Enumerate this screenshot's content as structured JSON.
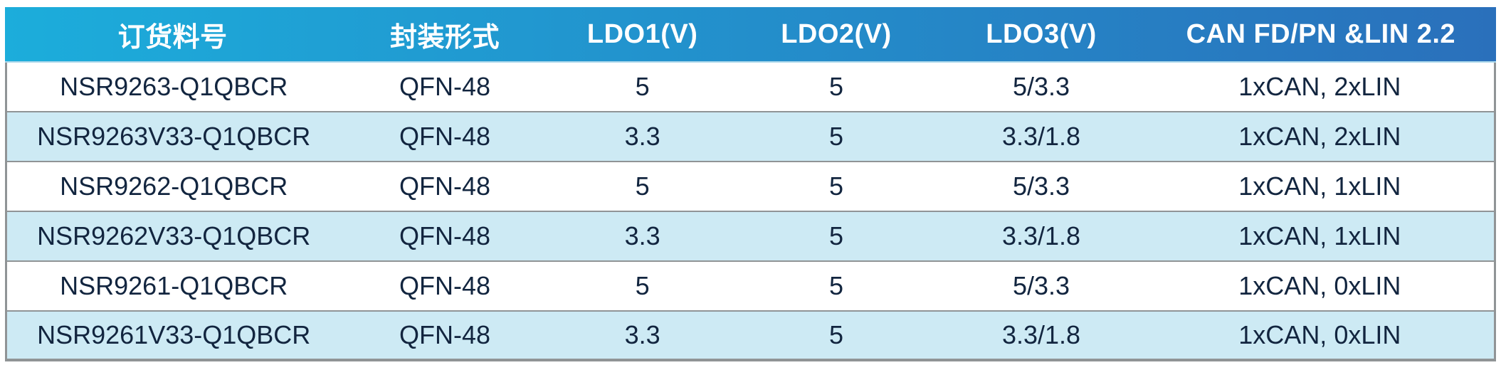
{
  "chart_data": {
    "type": "table",
    "columns": [
      "订货料号",
      "封装形式",
      "LDO1(V)",
      "LDO2(V)",
      "LDO3(V)",
      "CAN FD/PN &LIN 2.2"
    ],
    "rows": [
      [
        "NSR9263-Q1QBCR",
        "QFN-48",
        "5",
        "5",
        "5/3.3",
        "1xCAN, 2xLIN"
      ],
      [
        "NSR9263V33-Q1QBCR",
        "QFN-48",
        "3.3",
        "5",
        "3.3/1.8",
        "1xCAN, 2xLIN"
      ],
      [
        "NSR9262-Q1QBCR",
        "QFN-48",
        "5",
        "5",
        "5/3.3",
        "1xCAN, 1xLIN"
      ],
      [
        "NSR9262V33-Q1QBCR",
        "QFN-48",
        "3.3",
        "5",
        "3.3/1.8",
        "1xCAN, 1xLIN"
      ],
      [
        "NSR9261-Q1QBCR",
        "QFN-48",
        "5",
        "5",
        "5/3.3",
        "1xCAN, 0xLIN"
      ],
      [
        "NSR9261V33-Q1QBCR",
        "QFN-48",
        "3.3",
        "5",
        "3.3/1.8",
        "1xCAN, 0xLIN"
      ]
    ],
    "layout": {
      "header_style": "gradient",
      "zebra_striping": true,
      "grid": "horizontal-only"
    }
  },
  "colors": {
    "header_gradient_left": "#1caddb",
    "header_gradient_right": "#2a70bb",
    "header_text": "#ffffff",
    "row_even_bg": "#cdeaf4",
    "row_odd_bg": "#ffffff",
    "cell_text": "#12253f",
    "grid_border": "#909496",
    "header_underline": "#a9d6ea"
  }
}
